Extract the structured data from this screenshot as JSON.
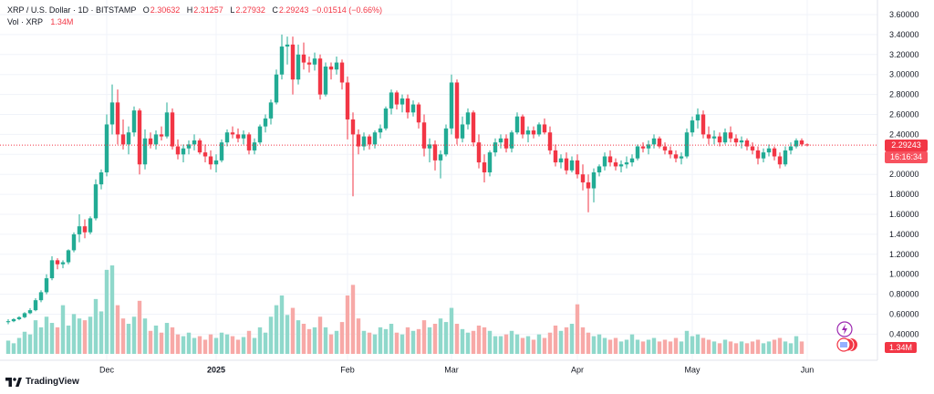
{
  "legend": {
    "symbol": "XRP",
    "sep1": "/",
    "currency": "U.S. Dollar",
    "sep2": "·",
    "interval": "1D",
    "sep3": "·",
    "exchange": "BITSTAMP",
    "open_label": "O",
    "open_value": "2.30632",
    "high_label": "H",
    "high_value": "2.31257",
    "low_label": "L",
    "low_value": "2.27932",
    "close_label": "C",
    "close_value": "2.29243",
    "change": "−0.01514 (−0.66%)"
  },
  "volume_legend": {
    "label": "Vol · XRP",
    "value": "1.34M"
  },
  "price_badge": {
    "price": "2.29243",
    "countdown": "16:16:34"
  },
  "volume_badge": "1.34M",
  "brand": "TradingView",
  "colors": {
    "up": "#22ab94",
    "down": "#f23645",
    "up_volume": "#8fd8cb",
    "down_volume": "#f7a9a7",
    "grid": "#f0f3fa",
    "current_line": "#f23645"
  },
  "chart_data": {
    "type": "candlestick",
    "title": "XRP / U.S. Dollar · 1D · BITSTAMP",
    "y_axis": {
      "ticks": [
        "3.60000",
        "3.40000",
        "3.20000",
        "3.00000",
        "2.80000",
        "2.60000",
        "2.40000",
        "2.20000",
        "2.00000",
        "1.80000",
        "1.60000",
        "1.40000",
        "1.20000",
        "1.00000",
        "0.80000",
        "0.60000",
        "0.40000"
      ],
      "tick_values": [
        3.6,
        3.4,
        3.2,
        3.0,
        2.8,
        2.6,
        2.4,
        2.2,
        2.0,
        1.8,
        1.6,
        1.4,
        1.2,
        1.0,
        0.8,
        0.6,
        0.4
      ]
    },
    "x_axis": {
      "labels": [
        "Dec",
        "2025",
        "Feb",
        "Mar",
        "Apr",
        "May",
        "Jun"
      ],
      "label_bar_index": [
        18,
        38,
        62,
        81,
        104,
        125,
        146
      ],
      "bold_labels": [
        "2025"
      ]
    },
    "current_price": 2.29243,
    "candles": [
      [
        0.52,
        0.55,
        0.5,
        0.53
      ],
      [
        0.53,
        0.56,
        0.52,
        0.55
      ],
      [
        0.55,
        0.58,
        0.54,
        0.57
      ],
      [
        0.57,
        0.62,
        0.56,
        0.61
      ],
      [
        0.61,
        0.66,
        0.6,
        0.64
      ],
      [
        0.64,
        0.76,
        0.63,
        0.74
      ],
      [
        0.74,
        0.84,
        0.72,
        0.82
      ],
      [
        0.82,
        1.0,
        0.8,
        0.96
      ],
      [
        0.96,
        1.18,
        0.94,
        1.14
      ],
      [
        1.14,
        1.16,
        1.05,
        1.1
      ],
      [
        1.1,
        1.14,
        1.06,
        1.12
      ],
      [
        1.12,
        1.25,
        1.1,
        1.24
      ],
      [
        1.24,
        1.42,
        1.22,
        1.4
      ],
      [
        1.4,
        1.6,
        1.32,
        1.48
      ],
      [
        1.48,
        1.55,
        1.36,
        1.42
      ],
      [
        1.42,
        1.58,
        1.4,
        1.56
      ],
      [
        1.56,
        1.95,
        1.54,
        1.9
      ],
      [
        1.9,
        2.05,
        1.85,
        2.02
      ],
      [
        2.02,
        2.6,
        1.98,
        2.5
      ],
      [
        2.5,
        2.9,
        2.4,
        2.72
      ],
      [
        2.72,
        2.85,
        2.3,
        2.4
      ],
      [
        2.4,
        2.55,
        2.25,
        2.3
      ],
      [
        2.3,
        2.48,
        2.2,
        2.42
      ],
      [
        2.42,
        2.68,
        2.38,
        2.64
      ],
      [
        2.64,
        2.66,
        2.0,
        2.1
      ],
      [
        2.1,
        2.45,
        2.05,
        2.36
      ],
      [
        2.36,
        2.42,
        2.26,
        2.3
      ],
      [
        2.3,
        2.44,
        2.25,
        2.4
      ],
      [
        2.4,
        2.48,
        2.34,
        2.38
      ],
      [
        2.38,
        2.72,
        2.36,
        2.62
      ],
      [
        2.62,
        2.66,
        2.25,
        2.28
      ],
      [
        2.28,
        2.35,
        2.15,
        2.2
      ],
      [
        2.2,
        2.3,
        2.12,
        2.26
      ],
      [
        2.26,
        2.34,
        2.2,
        2.3
      ],
      [
        2.3,
        2.4,
        2.24,
        2.34
      ],
      [
        2.34,
        2.36,
        2.2,
        2.22
      ],
      [
        2.22,
        2.3,
        2.12,
        2.18
      ],
      [
        2.18,
        2.24,
        2.05,
        2.1
      ],
      [
        2.1,
        2.2,
        2.02,
        2.14
      ],
      [
        2.14,
        2.35,
        2.12,
        2.32
      ],
      [
        2.32,
        2.45,
        2.28,
        2.42
      ],
      [
        2.42,
        2.48,
        2.36,
        2.4
      ],
      [
        2.4,
        2.46,
        2.32,
        2.36
      ],
      [
        2.36,
        2.44,
        2.3,
        2.4
      ],
      [
        2.4,
        2.42,
        2.2,
        2.24
      ],
      [
        2.24,
        2.36,
        2.2,
        2.32
      ],
      [
        2.32,
        2.5,
        2.3,
        2.48
      ],
      [
        2.48,
        2.6,
        2.42,
        2.56
      ],
      [
        2.56,
        2.75,
        2.5,
        2.72
      ],
      [
        2.72,
        3.05,
        2.7,
        3.0
      ],
      [
        3.0,
        3.4,
        2.95,
        3.28
      ],
      [
        3.28,
        3.38,
        3.1,
        3.3
      ],
      [
        3.3,
        3.38,
        2.8,
        2.95
      ],
      [
        2.95,
        3.3,
        2.9,
        3.2
      ],
      [
        3.2,
        3.32,
        3.05,
        3.12
      ],
      [
        3.12,
        3.18,
        3.02,
        3.1
      ],
      [
        3.1,
        3.22,
        3.04,
        3.16
      ],
      [
        3.16,
        3.2,
        2.75,
        2.8
      ],
      [
        2.8,
        3.12,
        2.78,
        3.08
      ],
      [
        3.08,
        3.12,
        2.95,
        3.05
      ],
      [
        3.05,
        3.18,
        3.0,
        3.12
      ],
      [
        3.12,
        3.15,
        2.85,
        2.92
      ],
      [
        2.92,
        2.98,
        2.35,
        2.55
      ],
      [
        2.55,
        2.62,
        1.78,
        2.4
      ],
      [
        2.4,
        2.45,
        2.2,
        2.28
      ],
      [
        2.28,
        2.42,
        2.24,
        2.38
      ],
      [
        2.38,
        2.4,
        2.25,
        2.3
      ],
      [
        2.3,
        2.44,
        2.26,
        2.42
      ],
      [
        2.42,
        2.5,
        2.36,
        2.46
      ],
      [
        2.46,
        2.68,
        2.44,
        2.66
      ],
      [
        2.66,
        2.85,
        2.6,
        2.82
      ],
      [
        2.82,
        2.84,
        2.65,
        2.7
      ],
      [
        2.7,
        2.8,
        2.62,
        2.76
      ],
      [
        2.76,
        2.8,
        2.56,
        2.62
      ],
      [
        2.62,
        2.74,
        2.58,
        2.7
      ],
      [
        2.7,
        2.72,
        2.46,
        2.52
      ],
      [
        2.52,
        2.6,
        2.18,
        2.26
      ],
      [
        2.26,
        2.36,
        2.12,
        2.3
      ],
      [
        2.3,
        2.34,
        2.04,
        2.14
      ],
      [
        2.14,
        2.24,
        1.96,
        2.2
      ],
      [
        2.2,
        2.5,
        2.18,
        2.46
      ],
      [
        2.46,
        3.0,
        2.4,
        2.92
      ],
      [
        2.92,
        2.95,
        2.3,
        2.36
      ],
      [
        2.36,
        2.58,
        2.32,
        2.5
      ],
      [
        2.5,
        2.66,
        2.45,
        2.62
      ],
      [
        2.62,
        2.64,
        2.28,
        2.32
      ],
      [
        2.32,
        2.4,
        2.06,
        2.12
      ],
      [
        2.12,
        2.2,
        1.92,
        2.02
      ],
      [
        2.02,
        2.24,
        1.98,
        2.22
      ],
      [
        2.22,
        2.36,
        2.18,
        2.32
      ],
      [
        2.32,
        2.4,
        2.26,
        2.36
      ],
      [
        2.36,
        2.4,
        2.22,
        2.26
      ],
      [
        2.26,
        2.44,
        2.22,
        2.42
      ],
      [
        2.42,
        2.62,
        2.4,
        2.58
      ],
      [
        2.58,
        2.6,
        2.36,
        2.4
      ],
      [
        2.4,
        2.48,
        2.32,
        2.44
      ],
      [
        2.44,
        2.48,
        2.36,
        2.4
      ],
      [
        2.4,
        2.52,
        2.38,
        2.5
      ],
      [
        2.5,
        2.56,
        2.4,
        2.42
      ],
      [
        2.42,
        2.48,
        2.2,
        2.24
      ],
      [
        2.24,
        2.3,
        2.08,
        2.12
      ],
      [
        2.12,
        2.2,
        2.06,
        2.16
      ],
      [
        2.16,
        2.22,
        2.0,
        2.04
      ],
      [
        2.04,
        2.18,
        2.02,
        2.14
      ],
      [
        2.14,
        2.2,
        1.96,
        2.0
      ],
      [
        2.0,
        2.1,
        1.84,
        1.92
      ],
      [
        1.92,
        2.0,
        1.62,
        1.86
      ],
      [
        1.86,
        2.06,
        1.72,
        2.02
      ],
      [
        2.02,
        2.1,
        1.98,
        2.08
      ],
      [
        2.08,
        2.22,
        2.04,
        2.18
      ],
      [
        2.18,
        2.24,
        2.08,
        2.12
      ],
      [
        2.12,
        2.16,
        2.04,
        2.08
      ],
      [
        2.08,
        2.14,
        2.02,
        2.1
      ],
      [
        2.1,
        2.18,
        2.06,
        2.12
      ],
      [
        2.12,
        2.2,
        2.08,
        2.16
      ],
      [
        2.16,
        2.3,
        2.14,
        2.28
      ],
      [
        2.28,
        2.32,
        2.22,
        2.26
      ],
      [
        2.26,
        2.34,
        2.2,
        2.3
      ],
      [
        2.3,
        2.4,
        2.26,
        2.36
      ],
      [
        2.36,
        2.38,
        2.26,
        2.28
      ],
      [
        2.28,
        2.32,
        2.2,
        2.24
      ],
      [
        2.24,
        2.28,
        2.16,
        2.2
      ],
      [
        2.2,
        2.24,
        2.12,
        2.16
      ],
      [
        2.16,
        2.22,
        2.1,
        2.18
      ],
      [
        2.18,
        2.46,
        2.16,
        2.42
      ],
      [
        2.42,
        2.58,
        2.38,
        2.54
      ],
      [
        2.54,
        2.66,
        2.46,
        2.6
      ],
      [
        2.6,
        2.64,
        2.36,
        2.4
      ],
      [
        2.4,
        2.48,
        2.3,
        2.36
      ],
      [
        2.36,
        2.44,
        2.3,
        2.38
      ],
      [
        2.38,
        2.42,
        2.28,
        2.32
      ],
      [
        2.32,
        2.46,
        2.3,
        2.42
      ],
      [
        2.42,
        2.48,
        2.32,
        2.36
      ],
      [
        2.36,
        2.4,
        2.28,
        2.32
      ],
      [
        2.32,
        2.38,
        2.26,
        2.34
      ],
      [
        2.34,
        2.36,
        2.24,
        2.28
      ],
      [
        2.28,
        2.32,
        2.2,
        2.24
      ],
      [
        2.24,
        2.28,
        2.1,
        2.16
      ],
      [
        2.16,
        2.26,
        2.12,
        2.22
      ],
      [
        2.22,
        2.3,
        2.18,
        2.26
      ],
      [
        2.26,
        2.28,
        2.14,
        2.18
      ],
      [
        2.18,
        2.22,
        2.06,
        2.1
      ],
      [
        2.1,
        2.28,
        2.08,
        2.24
      ],
      [
        2.24,
        2.32,
        2.2,
        2.28
      ],
      [
        2.28,
        2.36,
        2.26,
        2.34
      ],
      [
        2.34,
        2.36,
        2.28,
        2.3
      ],
      [
        2.3,
        2.31,
        2.28,
        2.29
      ]
    ],
    "volumes": [
      0.15,
      0.12,
      0.18,
      0.25,
      0.22,
      0.38,
      0.3,
      0.42,
      0.35,
      0.3,
      0.55,
      0.32,
      0.45,
      0.4,
      0.38,
      0.42,
      0.62,
      0.48,
      0.95,
      1.0,
      0.55,
      0.4,
      0.34,
      0.42,
      0.6,
      0.4,
      0.26,
      0.32,
      0.24,
      0.35,
      0.3,
      0.22,
      0.2,
      0.24,
      0.18,
      0.2,
      0.16,
      0.22,
      0.18,
      0.24,
      0.22,
      0.2,
      0.16,
      0.19,
      0.26,
      0.18,
      0.3,
      0.24,
      0.42,
      0.55,
      0.66,
      0.44,
      0.52,
      0.38,
      0.34,
      0.28,
      0.3,
      0.42,
      0.3,
      0.22,
      0.26,
      0.36,
      0.66,
      0.78,
      0.4,
      0.26,
      0.24,
      0.22,
      0.3,
      0.28,
      0.34,
      0.24,
      0.22,
      0.3,
      0.26,
      0.28,
      0.38,
      0.3,
      0.34,
      0.4,
      0.36,
      0.52,
      0.34,
      0.28,
      0.24,
      0.26,
      0.32,
      0.3,
      0.26,
      0.2,
      0.2,
      0.22,
      0.26,
      0.22,
      0.18,
      0.2,
      0.16,
      0.22,
      0.18,
      0.24,
      0.32,
      0.26,
      0.3,
      0.34,
      0.56,
      0.3,
      0.24,
      0.2,
      0.22,
      0.18,
      0.16,
      0.18,
      0.14,
      0.16,
      0.22,
      0.16,
      0.14,
      0.16,
      0.18,
      0.14,
      0.16,
      0.14,
      0.18,
      0.14,
      0.26,
      0.2,
      0.22,
      0.18,
      0.16,
      0.14,
      0.12,
      0.16,
      0.14,
      0.12,
      0.14,
      0.12,
      0.14,
      0.16,
      0.12,
      0.14,
      0.16,
      0.18,
      0.14,
      0.12,
      0.2,
      0.14
    ]
  }
}
